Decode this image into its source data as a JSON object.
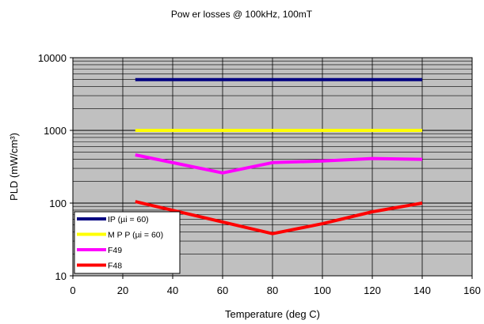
{
  "chart_data": {
    "type": "line",
    "title": "Pow er losses @ 100kHz, 100mT",
    "xlabel": "Temperature (deg C)",
    "ylabel": "PLD (mW/cm³)",
    "xlim": [
      0,
      160
    ],
    "ylim": [
      10,
      10000
    ],
    "y_scale": "log",
    "x_ticks": [
      "0",
      "20",
      "40",
      "60",
      "80",
      "100",
      "120",
      "140",
      "160"
    ],
    "y_ticks": [
      "10",
      "100",
      "1000",
      "10000"
    ],
    "grid": true,
    "legend_position": "bottom-left",
    "plot_background": "#c0c0c0",
    "series": [
      {
        "name": "IP  (µi = 60)",
        "color": "#000080",
        "x": [
          25,
          140
        ],
        "y": [
          5000,
          5000
        ]
      },
      {
        "name": "M P P  (µi = 60)",
        "color": "#ffff00",
        "x": [
          25,
          140
        ],
        "y": [
          1000,
          1000
        ]
      },
      {
        "name": "F49",
        "color": "#ff00ff",
        "x": [
          25,
          60,
          80,
          100,
          120,
          140
        ],
        "y": [
          460,
          260,
          360,
          380,
          410,
          400
        ]
      },
      {
        "name": "F48",
        "color": "#ff0000",
        "x": [
          25,
          60,
          80,
          100,
          120,
          140
        ],
        "y": [
          105,
          55,
          38,
          52,
          76,
          100
        ]
      }
    ]
  }
}
